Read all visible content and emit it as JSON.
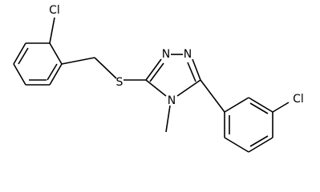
{
  "atoms": [
    {
      "label": "Cl"
    },
    {
      "label": "S"
    },
    {
      "label": "N"
    },
    {
      "label": "N"
    },
    {
      "label": "N"
    },
    {
      "label": "Cl"
    }
  ]
}
